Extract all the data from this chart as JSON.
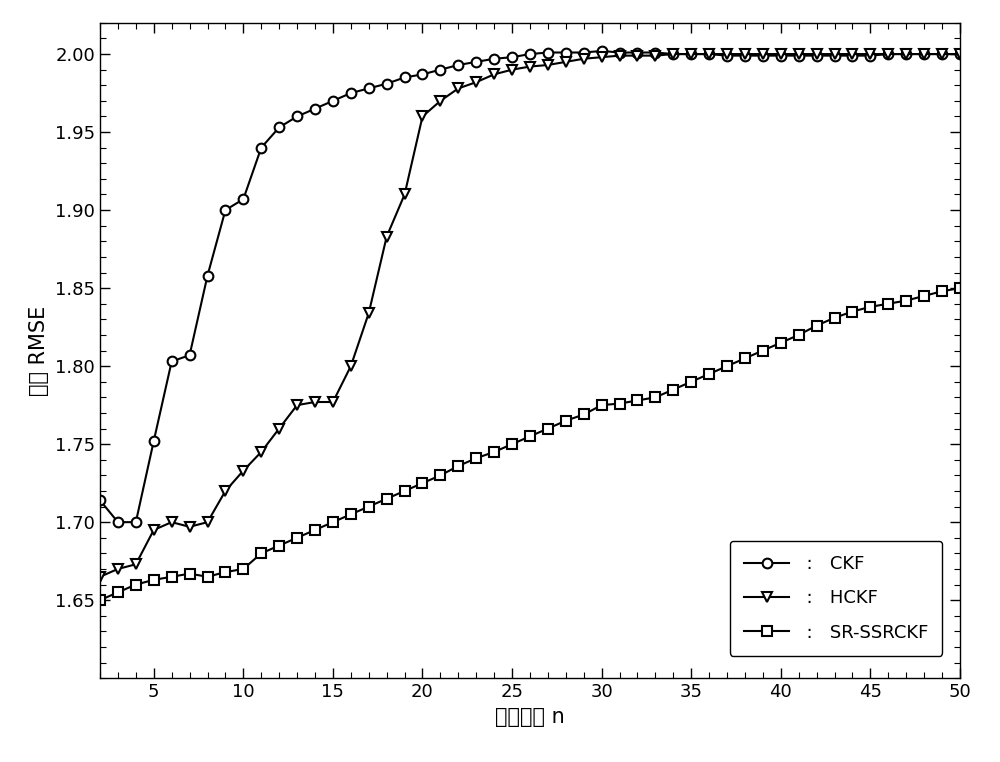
{
  "x": [
    2,
    3,
    4,
    5,
    6,
    7,
    8,
    9,
    10,
    11,
    12,
    13,
    14,
    15,
    16,
    17,
    18,
    19,
    20,
    21,
    22,
    23,
    24,
    25,
    26,
    27,
    28,
    29,
    30,
    31,
    32,
    33,
    34,
    35,
    36,
    37,
    38,
    39,
    40,
    41,
    42,
    43,
    44,
    45,
    46,
    47,
    48,
    49,
    50
  ],
  "ckf": [
    1.714,
    1.7,
    1.7,
    1.752,
    1.803,
    1.807,
    1.858,
    1.9,
    1.907,
    1.94,
    1.953,
    1.96,
    1.965,
    1.97,
    1.975,
    1.978,
    1.981,
    1.985,
    1.987,
    1.99,
    1.993,
    1.995,
    1.997,
    1.998,
    2.0,
    2.001,
    2.001,
    2.001,
    2.002,
    2.001,
    2.001,
    2.001,
    2.0,
    2.0,
    2.0,
    1.999,
    1.999,
    1.999,
    1.999,
    1.999,
    1.999,
    1.999,
    1.999,
    1.999,
    2.0,
    2.0,
    2.0,
    2.0,
    2.0
  ],
  "hckf": [
    1.665,
    1.67,
    1.673,
    1.695,
    1.7,
    1.697,
    1.7,
    1.72,
    1.733,
    1.745,
    1.76,
    1.775,
    1.777,
    1.777,
    1.8,
    1.834,
    1.883,
    1.91,
    1.96,
    1.97,
    1.978,
    1.982,
    1.987,
    1.99,
    1.992,
    1.993,
    1.995,
    1.997,
    1.998,
    1.999,
    1.999,
    1.999,
    2.0,
    2.0,
    2.0,
    2.0,
    2.0,
    2.0,
    2.0,
    2.0,
    2.0,
    2.0,
    2.0,
    2.0,
    2.0,
    2.0,
    2.0,
    2.0,
    2.0
  ],
  "srssrckf": [
    1.65,
    1.655,
    1.66,
    1.663,
    1.665,
    1.667,
    1.665,
    1.668,
    1.67,
    1.68,
    1.685,
    1.69,
    1.695,
    1.7,
    1.705,
    1.71,
    1.715,
    1.72,
    1.725,
    1.73,
    1.736,
    1.741,
    1.745,
    1.75,
    1.755,
    1.76,
    1.765,
    1.769,
    1.775,
    1.776,
    1.778,
    1.78,
    1.785,
    1.79,
    1.795,
    1.8,
    1.805,
    1.81,
    1.815,
    1.82,
    1.826,
    1.831,
    1.835,
    1.838,
    1.84,
    1.842,
    1.845,
    1.848,
    1.85
  ],
  "xlabel": "系统维度 n",
  "ylabel": "平均 RMSE",
  "xlim": [
    2,
    50
  ],
  "ylim": [
    1.6,
    2.02
  ],
  "xticks": [
    5,
    10,
    15,
    20,
    25,
    30,
    35,
    40,
    45,
    50
  ],
  "yticks": [
    1.65,
    1.7,
    1.75,
    1.8,
    1.85,
    1.9,
    1.95,
    2.0
  ],
  "line_color": "#000000",
  "bg_color": "#ffffff",
  "legend_labels": [
    "CKF",
    "HCKF",
    "SR-SSRCKF"
  ],
  "label_fontsize": 15,
  "tick_fontsize": 13,
  "legend_fontsize": 13,
  "linewidth": 1.5,
  "markersize": 7
}
